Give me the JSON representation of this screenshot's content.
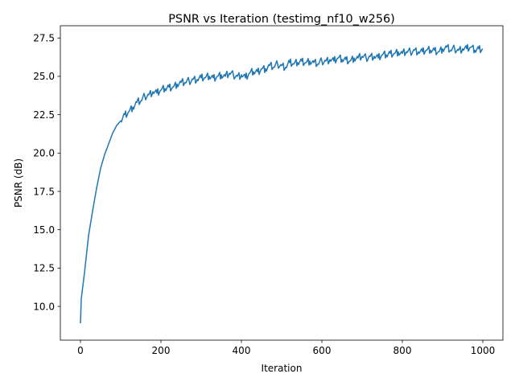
{
  "chart_data": {
    "type": "line",
    "title": "PSNR vs Iteration (testimg_nf10_w256)",
    "xlabel": "Iteration",
    "ylabel": "PSNR (dB)",
    "xlim": [
      -50,
      1050
    ],
    "ylim": [
      7.8,
      28.3
    ],
    "xticks": [
      0,
      200,
      400,
      600,
      800,
      1000
    ],
    "xtick_labels": [
      "0",
      "200",
      "400",
      "600",
      "800",
      "1000"
    ],
    "yticks": [
      10.0,
      12.5,
      15.0,
      17.5,
      20.0,
      22.5,
      25.0,
      27.5
    ],
    "ytick_labels": [
      "10.0",
      "12.5",
      "15.0",
      "17.5",
      "20.0",
      "22.5",
      "25.0",
      "27.5"
    ],
    "grid": false,
    "color": "#1f77b4",
    "x": [
      0,
      2,
      10,
      20,
      30,
      40,
      50,
      60,
      70,
      80,
      90,
      100,
      110,
      120,
      130,
      140,
      150,
      160,
      170,
      180,
      190,
      200,
      210,
      220,
      230,
      240,
      250,
      260,
      270,
      280,
      290,
      300,
      310,
      320,
      330,
      340,
      350,
      360,
      370,
      380,
      390,
      400,
      410,
      420,
      430,
      440,
      450,
      460,
      470,
      480,
      490,
      500,
      510,
      520,
      530,
      540,
      550,
      560,
      570,
      580,
      590,
      600,
      610,
      620,
      630,
      640,
      650,
      660,
      670,
      680,
      690,
      700,
      710,
      720,
      730,
      740,
      750,
      760,
      770,
      780,
      790,
      800,
      810,
      820,
      830,
      840,
      850,
      860,
      870,
      880,
      890,
      900,
      910,
      920,
      930,
      940,
      950,
      960,
      970,
      980,
      990,
      1000
    ],
    "y": [
      8.9,
      10.5,
      12.2,
      14.6,
      16.2,
      17.7,
      19.0,
      19.9,
      20.6,
      21.3,
      21.8,
      22.1,
      22.5,
      22.7,
      23.0,
      23.3,
      23.4,
      23.7,
      23.8,
      24.0,
      23.9,
      24.1,
      24.2,
      24.3,
      24.3,
      24.5,
      24.6,
      24.6,
      24.7,
      24.8,
      24.8,
      24.9,
      24.9,
      25.0,
      24.9,
      25.0,
      25.1,
      25.0,
      25.2,
      25.1,
      25.0,
      25.1,
      24.9,
      25.2,
      25.3,
      25.3,
      25.5,
      25.5,
      25.7,
      25.6,
      25.8,
      25.7,
      25.6,
      25.9,
      25.8,
      25.9,
      26.0,
      25.9,
      26.0,
      25.9,
      25.8,
      26.0,
      26.0,
      26.1,
      26.0,
      26.2,
      26.1,
      26.1,
      26.0,
      26.2,
      26.2,
      26.3,
      26.2,
      26.3,
      26.3,
      26.2,
      26.4,
      26.4,
      26.5,
      26.5,
      26.6,
      26.5,
      26.6,
      26.6,
      26.7,
      26.6,
      26.6,
      26.7,
      26.7,
      26.7,
      26.6,
      26.8,
      26.9,
      26.7,
      26.8,
      26.7,
      26.8,
      26.8,
      26.9,
      26.7,
      26.8,
      26.8
    ]
  }
}
